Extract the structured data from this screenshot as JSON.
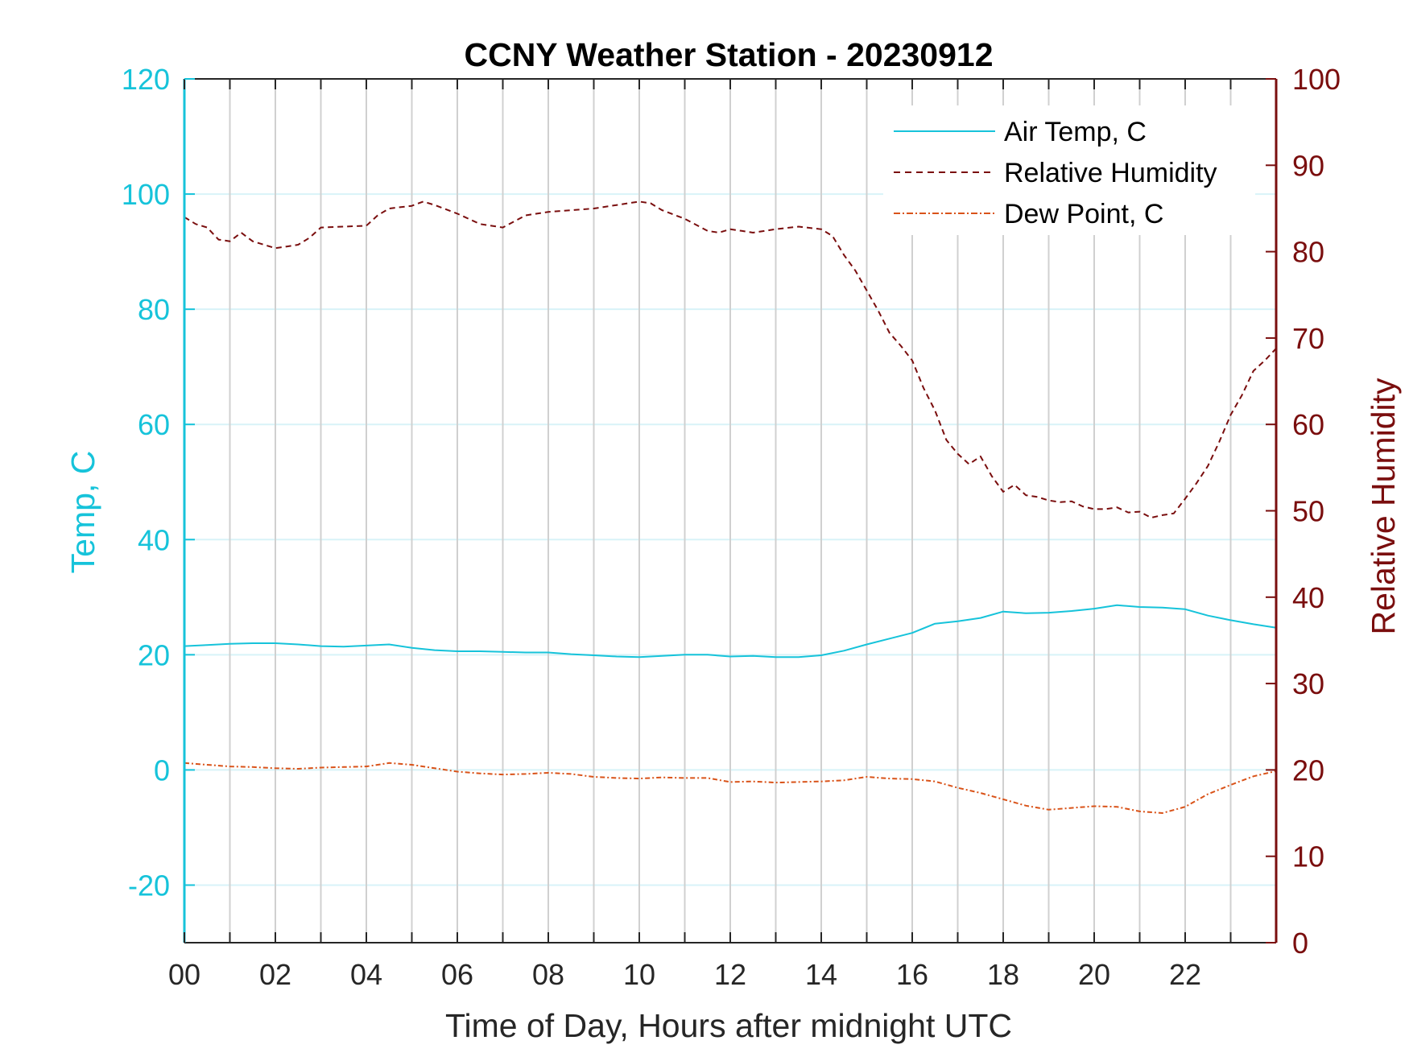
{
  "chart_data": {
    "type": "line",
    "title": "CCNY Weather Station - 20230912",
    "xlabel": "Time of Day, Hours after midnight UTC",
    "ylabel_left": "Temp, C",
    "ylabel_right": "Relative Humidity",
    "xlim": [
      0,
      24
    ],
    "ylim_left": [
      -30,
      120
    ],
    "ylim_right": [
      0,
      100
    ],
    "x_ticks": [
      0,
      2,
      4,
      6,
      8,
      10,
      12,
      14,
      16,
      18,
      20,
      22
    ],
    "x_tick_labels": [
      "00",
      "02",
      "04",
      "06",
      "08",
      "10",
      "12",
      "14",
      "16",
      "18",
      "20",
      "22"
    ],
    "left_ticks": [
      -20,
      0,
      20,
      40,
      60,
      80,
      100,
      120
    ],
    "left_tick_labels": [
      "-20",
      "0",
      "20",
      "40",
      "60",
      "80",
      "100",
      "120"
    ],
    "right_ticks": [
      0,
      10,
      20,
      30,
      40,
      50,
      60,
      70,
      80,
      90,
      100
    ],
    "right_tick_labels": [
      "0",
      "10",
      "20",
      "30",
      "40",
      "50",
      "60",
      "70",
      "80",
      "90",
      "100"
    ],
    "grid": true,
    "legend_position": "top-right",
    "colors": {
      "air_temp": "#16C3DA",
      "relative_humidity": "#7A0E0E",
      "dew_point": "#D95319",
      "vertical_grid": "#D0D0D0",
      "horizontal_grid": "#D8F3F8"
    },
    "series": [
      {
        "name": "Air Temp, C",
        "axis": "left",
        "style": "solid",
        "x": [
          0,
          0.5,
          1,
          1.5,
          2,
          2.5,
          3,
          3.5,
          4,
          4.5,
          5,
          5.5,
          6,
          6.5,
          7,
          7.5,
          8,
          8.5,
          9,
          9.5,
          10,
          10.5,
          11,
          11.5,
          12,
          12.5,
          13,
          13.5,
          14,
          14.5,
          15,
          15.5,
          16,
          16.5,
          17,
          17.5,
          18,
          18.5,
          19,
          19.5,
          20,
          20.5,
          21,
          21.5,
          22,
          22.5,
          23,
          23.5,
          24
        ],
        "values": [
          21.5,
          21.7,
          21.9,
          22,
          22,
          21.8,
          21.5,
          21.4,
          21.6,
          21.8,
          21.2,
          20.8,
          20.6,
          20.6,
          20.5,
          20.4,
          20.4,
          20.1,
          19.9,
          19.7,
          19.6,
          19.8,
          20,
          20,
          19.7,
          19.8,
          19.6,
          19.6,
          19.9,
          20.7,
          21.8,
          22.8,
          23.8,
          25.4,
          25.8,
          26.4,
          27.5,
          27.2,
          27.3,
          27.6,
          28,
          28.6,
          28.3,
          28.2,
          27.9,
          26.8,
          26,
          25.3,
          24.7
        ]
      },
      {
        "name": "Relative Humidity",
        "axis": "right",
        "style": "dashed",
        "x": [
          0,
          0.25,
          0.5,
          0.75,
          1,
          1.25,
          1.5,
          1.75,
          2,
          2.25,
          2.5,
          2.75,
          3,
          3.5,
          4,
          4.25,
          4.5,
          5,
          5.25,
          5.5,
          6,
          6.5,
          7,
          7.5,
          8,
          8.5,
          9,
          9.5,
          10,
          10.25,
          10.5,
          11,
          11.5,
          11.75,
          12,
          12.25,
          12.5,
          13,
          13.5,
          14,
          14.25,
          14.5,
          14.75,
          15,
          15.25,
          15.5,
          15.75,
          16,
          16.25,
          16.5,
          16.75,
          17,
          17.25,
          17.5,
          17.75,
          18,
          18.25,
          18.5,
          18.75,
          19,
          19.25,
          19.5,
          19.75,
          20,
          20.25,
          20.5,
          20.75,
          21,
          21.25,
          21.5,
          21.75,
          22,
          22.25,
          22.5,
          22.75,
          23,
          23.25,
          23.5,
          23.75,
          24
        ],
        "values": [
          84,
          83.2,
          82.8,
          81.4,
          81.2,
          82.2,
          81.2,
          80.8,
          80.4,
          80.6,
          80.8,
          81.6,
          82.8,
          82.9,
          83,
          84.2,
          85,
          85.3,
          85.8,
          85.4,
          84.4,
          83.2,
          82.8,
          84.2,
          84.6,
          84.8,
          85,
          85.4,
          85.8,
          85.6,
          84.8,
          83.8,
          82.4,
          82.2,
          82.6,
          82.4,
          82.2,
          82.6,
          82.9,
          82.6,
          81.8,
          79.6,
          77.8,
          75.5,
          73.2,
          70.6,
          69.1,
          67.4,
          64.2,
          61.6,
          58.2,
          56.6,
          55.4,
          56.3,
          54,
          52.2,
          53,
          51.8,
          51.6,
          51.2,
          51,
          51.1,
          50.5,
          50.2,
          50.2,
          50.4,
          49.8,
          49.9,
          49.2,
          49.5,
          49.7,
          51.4,
          53.2,
          55.2,
          58,
          61.1,
          63.4,
          66.2,
          67.4,
          68.8
        ]
      },
      {
        "name": "Dew Point, C",
        "axis": "left",
        "style": "dashdot",
        "x": [
          0,
          0.5,
          1,
          1.5,
          2,
          2.5,
          3,
          3.5,
          4,
          4.25,
          4.5,
          5,
          5.5,
          6,
          6.5,
          7,
          7.5,
          8,
          8.5,
          9,
          9.5,
          10,
          10.5,
          11,
          11.5,
          12,
          12.5,
          13,
          13.5,
          14,
          14.5,
          15,
          15.5,
          16,
          16.5,
          17,
          17.5,
          18,
          18.5,
          19,
          19.5,
          20,
          20.5,
          21,
          21.5,
          22,
          22.5,
          23,
          23.5,
          24
        ],
        "values": [
          1.2,
          0.9,
          0.6,
          0.5,
          0.3,
          0.2,
          0.4,
          0.5,
          0.6,
          0.9,
          1.2,
          0.9,
          0.3,
          -0.3,
          -0.6,
          -0.8,
          -0.7,
          -0.5,
          -0.7,
          -1.2,
          -1.4,
          -1.5,
          -1.3,
          -1.4,
          -1.4,
          -2.1,
          -2,
          -2.2,
          -2.1,
          -2,
          -1.8,
          -1.2,
          -1.5,
          -1.6,
          -2,
          -3.1,
          -4,
          -5.1,
          -6.2,
          -6.9,
          -6.6,
          -6.3,
          -6.4,
          -7.2,
          -7.5,
          -6.4,
          -4.2,
          -2.6,
          -1.1,
          -0.2
        ]
      }
    ]
  }
}
